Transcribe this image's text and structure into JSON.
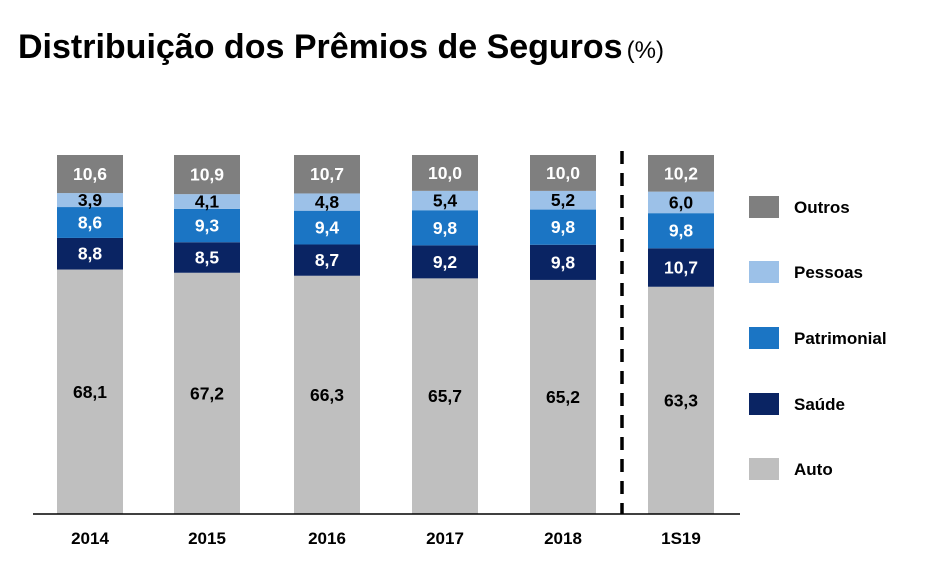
{
  "title": {
    "main": "Distribuição dos Prêmios de Seguros",
    "unit": "(%)"
  },
  "chart_data": {
    "type": "bar",
    "stacked": true,
    "categories": [
      "2014",
      "2015",
      "2016",
      "2017",
      "2018",
      "1S19"
    ],
    "ylim": [
      0,
      100
    ],
    "grid": false,
    "legend_placement": "right",
    "separator_before_category": "1S19",
    "series": [
      {
        "name": "Auto",
        "color": "#bfbfbf",
        "label_color": "#000000",
        "values": [
          68.1,
          67.2,
          66.3,
          65.7,
          65.2,
          63.3
        ],
        "labels": [
          "68,1",
          "67,2",
          "66,3",
          "65,7",
          "65,2",
          "63,3"
        ]
      },
      {
        "name": "Saúde",
        "color": "#0a2463",
        "label_color": "#ffffff",
        "values": [
          8.8,
          8.5,
          8.7,
          9.2,
          9.8,
          10.7
        ],
        "labels": [
          "8,8",
          "8,5",
          "8,7",
          "9,2",
          "9,8",
          "10,7"
        ]
      },
      {
        "name": "Patrimonial",
        "color": "#1b75c4",
        "label_color": "#ffffff",
        "values": [
          8.6,
          9.3,
          9.4,
          9.8,
          9.8,
          9.8
        ],
        "labels": [
          "8,6",
          "9,3",
          "9,4",
          "9,8",
          "9,8",
          "9,8"
        ]
      },
      {
        "name": "Pessoas",
        "color": "#9cc1e8",
        "label_color": "#000000",
        "values": [
          3.9,
          4.1,
          4.8,
          5.4,
          5.2,
          6.0
        ],
        "labels": [
          "3,9",
          "4,1",
          "4,8",
          "5,4",
          "5,2",
          "6,0"
        ]
      },
      {
        "name": "Outros",
        "color": "#7f7f7f",
        "label_color": "#ffffff",
        "values": [
          10.6,
          10.9,
          10.7,
          10.0,
          10.0,
          10.2
        ],
        "labels": [
          "10,6",
          "10,9",
          "10,7",
          "10,0",
          "10,0",
          "10,2"
        ]
      }
    ],
    "legend_order": [
      "Outros",
      "Pessoas",
      "Patrimonial",
      "Saúde",
      "Auto"
    ]
  }
}
